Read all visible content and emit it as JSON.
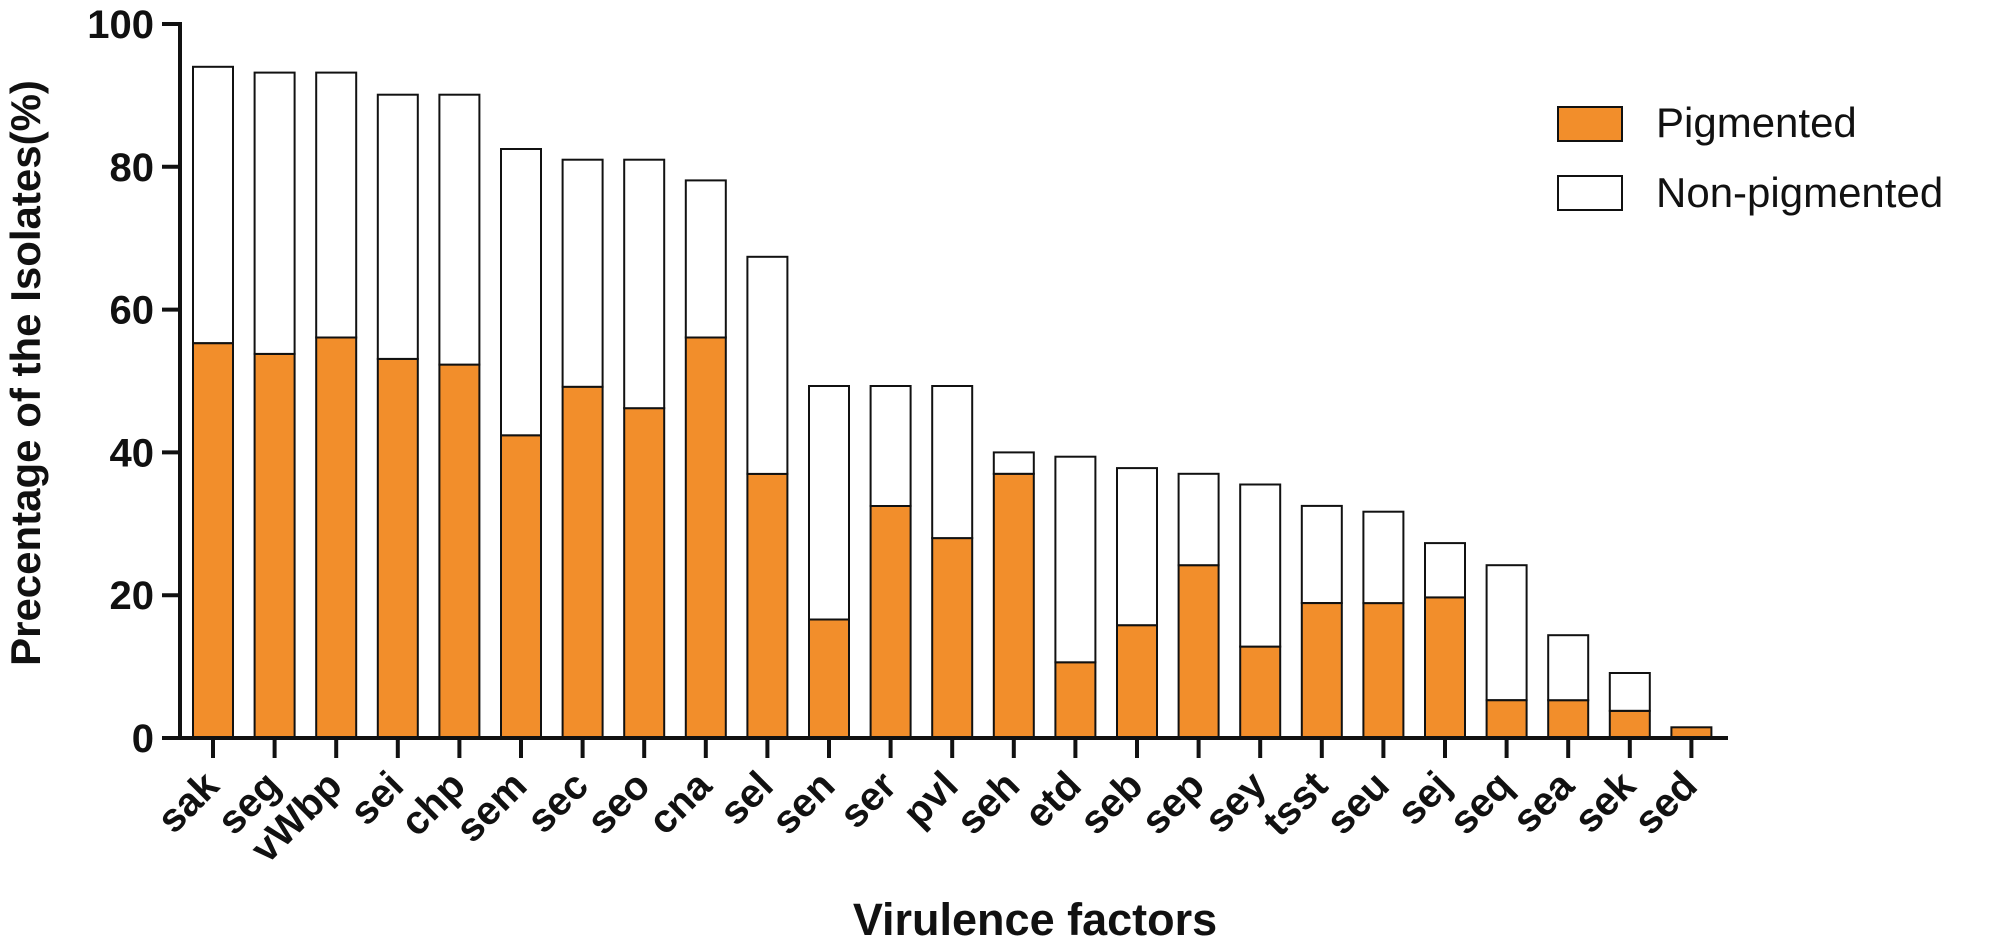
{
  "chart_data": {
    "type": "bar",
    "stacked": true,
    "categories": [
      "sak",
      "seg",
      "vWbp",
      "sei",
      "chp",
      "sem",
      "sec",
      "seo",
      "cna",
      "sel",
      "sen",
      "ser",
      "pvl",
      "seh",
      "etd",
      "seb",
      "sep",
      "sey",
      "tsst",
      "seu",
      "sej",
      "seq",
      "sea",
      "sek",
      "sed"
    ],
    "series": [
      {
        "name": "Pigmented",
        "color": "#f28e2b",
        "values": [
          55.3,
          53.8,
          56.1,
          53.1,
          52.3,
          42.4,
          49.2,
          46.2,
          56.1,
          37.0,
          16.6,
          32.5,
          28.0,
          37.0,
          10.6,
          15.8,
          24.2,
          12.8,
          18.9,
          18.9,
          19.7,
          5.3,
          5.3,
          3.8,
          1.5
        ]
      },
      {
        "name": "Non-pigmented",
        "color": "#ffffff",
        "values": [
          38.7,
          39.4,
          37.1,
          37.0,
          37.8,
          40.1,
          31.8,
          34.8,
          22.0,
          30.4,
          32.7,
          16.8,
          21.3,
          3.0,
          28.8,
          22.0,
          12.8,
          22.7,
          13.6,
          12.8,
          7.6,
          18.9,
          9.1,
          5.3,
          0.0
        ]
      }
    ],
    "ylim": [
      0,
      100
    ],
    "yticks": [
      "0",
      "20",
      "40",
      "60",
      "80",
      "100"
    ],
    "ytick_values": [
      0,
      20,
      40,
      60,
      80,
      100
    ],
    "xlabel": "Virulence factors",
    "ylabel": "Precentage of the Isolates(%)",
    "legend_position": "top-right",
    "legend": [
      "Pigmented",
      "Non-pigmented"
    ],
    "title": ""
  }
}
